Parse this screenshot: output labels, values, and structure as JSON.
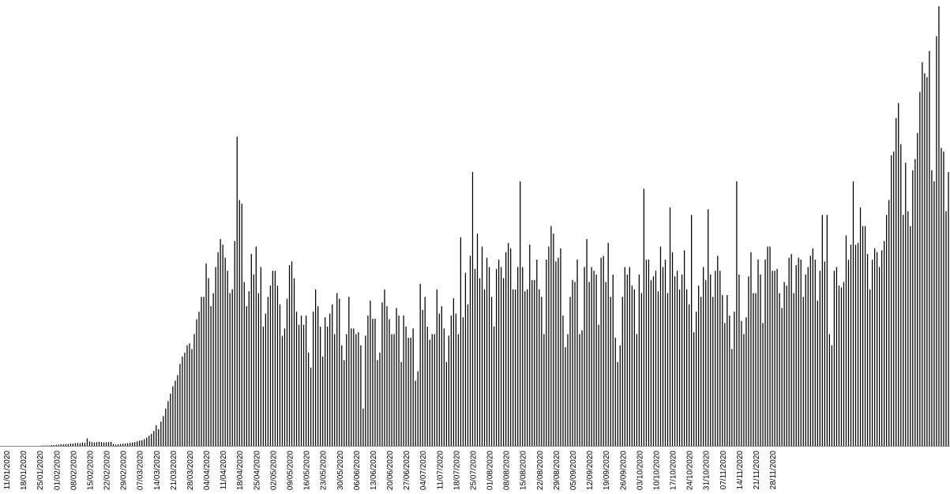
{
  "chart_data": {
    "type": "bar",
    "title": "",
    "xlabel": "",
    "ylabel": "",
    "grid": false,
    "legend": "none",
    "bar_color": "#000000",
    "axis_color": "#888888",
    "x_start": "11/01/2020",
    "x_end": "01/12/2020",
    "tick_labels": [
      "11/01/2020",
      "18/01/2020",
      "25/01/2020",
      "01/02/2020",
      "08/02/2020",
      "15/02/2020",
      "22/02/2020",
      "29/02/2020",
      "07/03/2020",
      "14/03/2020",
      "21/03/2020",
      "28/03/2020",
      "04/04/2020",
      "11/04/2020",
      "18/04/2020",
      "25/04/2020",
      "02/05/2020",
      "09/05/2020",
      "16/05/2020",
      "23/05/2020",
      "30/05/2020",
      "06/06/2020",
      "13/06/2020",
      "20/06/2020",
      "27/06/2020",
      "04/07/2020",
      "11/07/2020",
      "18/07/2020",
      "25/07/2020",
      "01/08/2020",
      "08/08/2020",
      "15/08/2020",
      "22/08/2020",
      "29/08/2020",
      "05/09/2020",
      "12/09/2020",
      "19/09/2020",
      "26/09/2020",
      "03/10/2020",
      "10/10/2020",
      "17/10/2020",
      "24/10/2020",
      "31/10/2020",
      "07/11/2020",
      "14/11/2020",
      "21/11/2020",
      "28/11/2020"
    ],
    "values": [
      0,
      0,
      0,
      0,
      0,
      0,
      0,
      0,
      0,
      0,
      0,
      0,
      0,
      0,
      0,
      1,
      1,
      1,
      1,
      2,
      2,
      3,
      3,
      4,
      4,
      5,
      5,
      6,
      6,
      7,
      8,
      7,
      9,
      8,
      20,
      12,
      10,
      9,
      10,
      11,
      10,
      9,
      10,
      10,
      11,
      5,
      3,
      4,
      5,
      6,
      6,
      7,
      8,
      9,
      10,
      12,
      14,
      15,
      18,
      22,
      27,
      32,
      40,
      55,
      45,
      65,
      80,
      100,
      120,
      140,
      160,
      175,
      190,
      220,
      240,
      250,
      270,
      275,
      260,
      300,
      340,
      360,
      400,
      400,
      490,
      450,
      375,
      410,
      480,
      520,
      555,
      540,
      505,
      470,
      410,
      420,
      550,
      830,
      660,
      650,
      440,
      375,
      415,
      515,
      460,
      535,
      410,
      480,
      320,
      355,
      400,
      430,
      470,
      470,
      430,
      380,
      295,
      315,
      395,
      485,
      495,
      450,
      360,
      325,
      350,
      325,
      350,
      250,
      210,
      360,
      420,
      375,
      320,
      240,
      345,
      320,
      355,
      380,
      300,
      410,
      395,
      270,
      230,
      300,
      400,
      315,
      315,
      300,
      305,
      270,
      100,
      296,
      350,
      390,
      341,
      341,
      230,
      250,
      385,
      420,
      375,
      340,
      300,
      300,
      370,
      350,
      225,
      350,
      320,
      290,
      290,
      315,
      175,
      200,
      435,
      365,
      400,
      320,
      285,
      300,
      300,
      420,
      355,
      375,
      315,
      225,
      296,
      350,
      396,
      355,
      300,
      560,
      345,
      465,
      380,
      510,
      735,
      475,
      570,
      450,
      535,
      420,
      505,
      480,
      400,
      320,
      475,
      500,
      480,
      450,
      520,
      545,
      530,
      420,
      420,
      480,
      710,
      480,
      415,
      420,
      540,
      445,
      445,
      500,
      420,
      400,
      300,
      500,
      535,
      590,
      570,
      495,
      505,
      530,
      350,
      265,
      300,
      400,
      445,
      440,
      500,
      300,
      310,
      480,
      555,
      440,
      480,
      470,
      460,
      325,
      505,
      510,
      440,
      545,
      400,
      460,
      290,
      225,
      270,
      400,
      480,
      460,
      480,
      430,
      420,
      300,
      460,
      410,
      690,
      500,
      500,
      445,
      455,
      470,
      415,
      535,
      480,
      500,
      410,
      640,
      520,
      455,
      470,
      420,
      460,
      525,
      420,
      380,
      620,
      305,
      360,
      430,
      400,
      480,
      445,
      635,
      460,
      400,
      470,
      510,
      470,
      405,
      330,
      405,
      350,
      260,
      360,
      710,
      460,
      335,
      300,
      345,
      455,
      520,
      410,
      410,
      500,
      460,
      330,
      500,
      535,
      535,
      470,
      470,
      475,
      410,
      370,
      440,
      430,
      505,
      515,
      410,
      485,
      505,
      500,
      400,
      460,
      480,
      510,
      530,
      500,
      390,
      470,
      620,
      495,
      620,
      300,
      270,
      470,
      480,
      430,
      425,
      440,
      565,
      500,
      540,
      710,
      540,
      545,
      640,
      590,
      590,
      515,
      420,
      500,
      530,
      520,
      480,
      525,
      550,
      620,
      660,
      780,
      790,
      880,
      920,
      810,
      620,
      760,
      630,
      590,
      740,
      770,
      840,
      950,
      1030,
      1000,
      990,
      1060,
      740,
      710,
      1100,
      1180,
      800,
      790,
      630,
      735
    ]
  }
}
